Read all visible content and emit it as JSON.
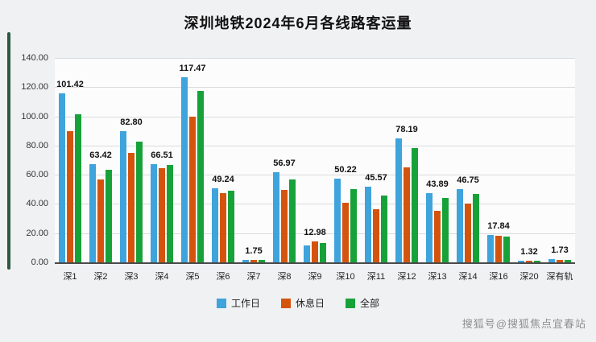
{
  "title": "深圳地铁2024年6月各线路客运量",
  "watermark": "搜狐号@搜狐焦点宜春站",
  "legend": [
    {
      "label": "工作日",
      "color": "#3FA3DC"
    },
    {
      "label": "休息日",
      "color": "#D4540E"
    },
    {
      "label": "全部",
      "color": "#17A239"
    }
  ],
  "chart_data": {
    "type": "bar",
    "title": "深圳地铁2024年6月各线路客运量",
    "categories": [
      "深1",
      "深2",
      "深3",
      "深4",
      "深5",
      "深6",
      "深7",
      "深8",
      "深9",
      "深10",
      "深11",
      "深12",
      "深13",
      "深14",
      "深16",
      "深20",
      "深有轨"
    ],
    "series": [
      {
        "name": "工作日",
        "color": "#3FA3DC",
        "values": [
          115.5,
          67.5,
          90.0,
          67.0,
          126.5,
          50.5,
          1.8,
          62.0,
          11.5,
          57.5,
          52.0,
          85.0,
          47.5,
          50.0,
          18.5,
          1.3,
          2.2
        ]
      },
      {
        "name": "休息日",
        "color": "#D4540E",
        "values": [
          90.0,
          57.0,
          75.0,
          64.5,
          100.0,
          47.5,
          1.7,
          49.5,
          14.5,
          41.0,
          36.5,
          65.0,
          35.5,
          40.0,
          18.0,
          1.3,
          1.5
        ]
      },
      {
        "name": "全部",
        "color": "#17A239",
        "values": [
          101.42,
          63.42,
          82.8,
          66.51,
          117.47,
          49.24,
          1.75,
          56.97,
          12.98,
          50.22,
          45.57,
          78.19,
          43.89,
          46.75,
          17.84,
          1.32,
          1.73
        ]
      }
    ],
    "labels": [
      "101.42",
      "63.42",
      "82.80",
      "66.51",
      "117.47",
      "49.24",
      "1.75",
      "56.97",
      "12.98",
      "50.22",
      "45.57",
      "78.19",
      "43.89",
      "46.75",
      "17.84",
      "1.32",
      "1.73"
    ],
    "ylim": [
      0,
      140
    ],
    "yticks": [
      "0.00",
      "20.00",
      "40.00",
      "60.00",
      "80.00",
      "100.00",
      "120.00",
      "140.00"
    ],
    "grid": true,
    "legend_position": "bottom"
  }
}
